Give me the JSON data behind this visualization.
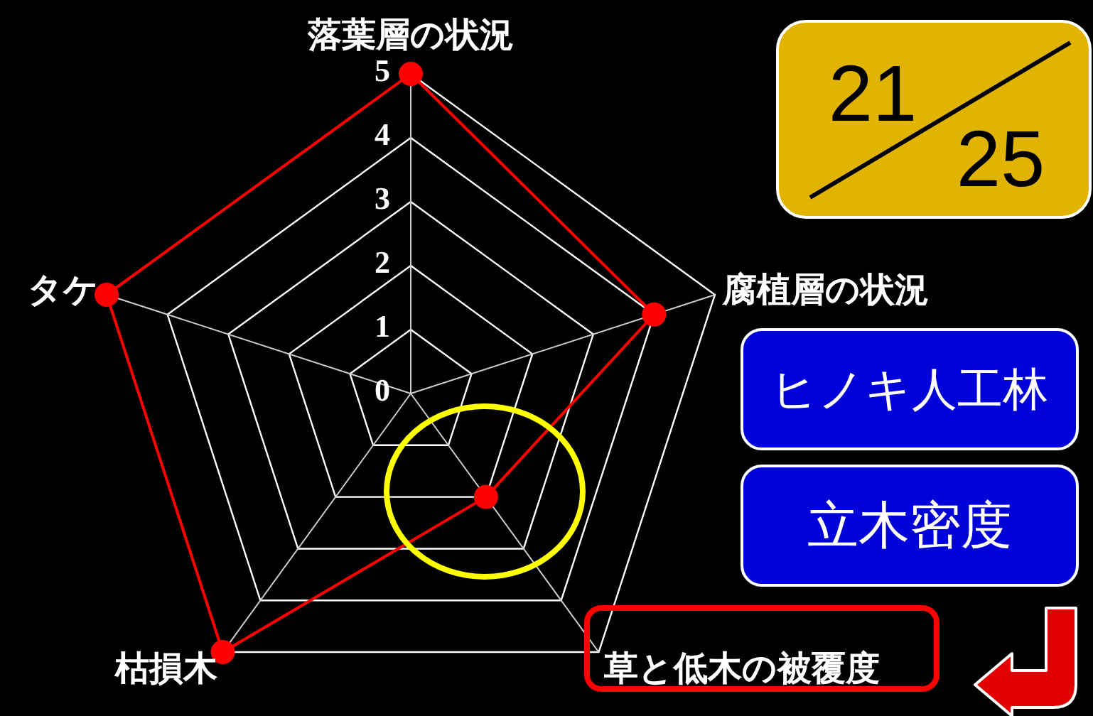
{
  "chart_data": {
    "type": "radar",
    "categories": [
      "落葉層の状況",
      "腐植層の状況",
      "草と低木の被覆度",
      "枯損木",
      "タケ"
    ],
    "series": [
      {
        "color": "#ff0000",
        "values": [
          5,
          4,
          2,
          5,
          5
        ]
      }
    ],
    "ylim": [
      0,
      5
    ],
    "yticks": [
      0,
      1,
      2,
      3,
      4,
      5
    ],
    "grid": true,
    "marker": "circle",
    "annotations": [
      "21",
      "25",
      "ヒノキ人工林",
      "立木密度"
    ]
  }
}
